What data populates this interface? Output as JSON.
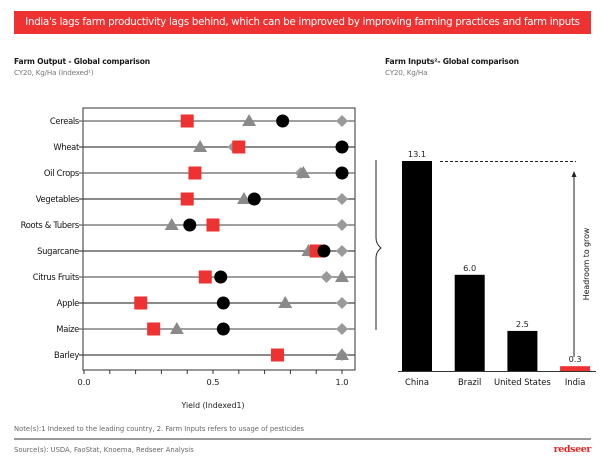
{
  "banner": {
    "title": "India's lags farm productivity lags behind, which can be improved by improving farming practices and farm inputs"
  },
  "left_panel": {
    "title": "Farm Output - Global comparison",
    "subtitle": "CY20, Kg/Ha (Indexed¹)"
  },
  "right_panel": {
    "title": "Farm Inputs²- Global comparison",
    "subtitle": "CY20, Kg/Ha"
  },
  "footer": {
    "note": "Note(s):1 Indexed to the leading country, 2. Farm Inputs refers to usage of pesticides",
    "source": "Source(s): USDA, FaoStat, Knoema, Redseer Analysis",
    "logo": "redseer"
  },
  "colors": {
    "accent_red": "#ee3131",
    "black": "#000000",
    "grey": "#8a8a8a",
    "light_grey": "#9a9a9a"
  },
  "chart_data": [
    {
      "type": "scatter",
      "title": "Farm Output - Global comparison",
      "subtitle": "CY20, Kg/Ha (Indexed¹)",
      "xlabel": "Yield (Indexed1)",
      "ylabel": "",
      "xlim": [
        0,
        1.0
      ],
      "xticks": [
        0.0,
        0.1,
        0.2,
        0.3,
        0.4,
        0.5,
        0.6,
        0.7,
        0.8,
        0.9,
        1.0
      ],
      "xtick_labels": [
        "0.0",
        "",
        "",
        "",
        "",
        "0.5",
        "",
        "",
        "",
        "",
        "1.0"
      ],
      "grid": false,
      "legend": "none",
      "categories": [
        "Cereals",
        "Wheat",
        "Oil Crops",
        "Vegetables",
        "Roots & Tubers",
        "Sugarcane",
        "Citrus Fruits",
        "Apple",
        "Maize",
        "Barley"
      ],
      "series": [
        {
          "name": "red-square",
          "marker": "square",
          "color": "#ee3131",
          "values": [
            0.4,
            0.6,
            0.43,
            0.4,
            0.5,
            0.9,
            0.47,
            0.22,
            0.27,
            0.75
          ]
        },
        {
          "name": "black-circle",
          "marker": "circle",
          "color": "#000000",
          "values": [
            0.77,
            1.0,
            1.0,
            0.66,
            0.41,
            0.93,
            0.53,
            0.54,
            0.54,
            null
          ]
        },
        {
          "name": "grey-triangle",
          "marker": "triangle",
          "color": "#8a8a8a",
          "values": [
            0.64,
            0.45,
            0.85,
            0.62,
            0.34,
            0.87,
            1.0,
            0.78,
            0.36,
            1.0
          ]
        },
        {
          "name": "grey-diamond",
          "marker": "diamond",
          "color": "#9a9a9a",
          "values": [
            1.0,
            0.58,
            0.84,
            1.0,
            1.0,
            1.0,
            0.94,
            1.0,
            1.0,
            1.0
          ]
        }
      ]
    },
    {
      "type": "bar",
      "title": "Farm Inputs²- Global comparison",
      "subtitle": "CY20, Kg/Ha",
      "categories": [
        "China",
        "Brazil",
        "United States",
        "India"
      ],
      "values": [
        13.1,
        6.0,
        2.5,
        0.3
      ],
      "value_labels": [
        "13.1",
        "6.0",
        "2.5",
        "0.3"
      ],
      "bar_colors": [
        "#000000",
        "#000000",
        "#000000",
        "#ee3131"
      ],
      "ylim": [
        0,
        13.1
      ],
      "xlabel": "",
      "ylabel": "",
      "annotation": "Headroom to grow",
      "grid": false,
      "legend": "none"
    }
  ]
}
